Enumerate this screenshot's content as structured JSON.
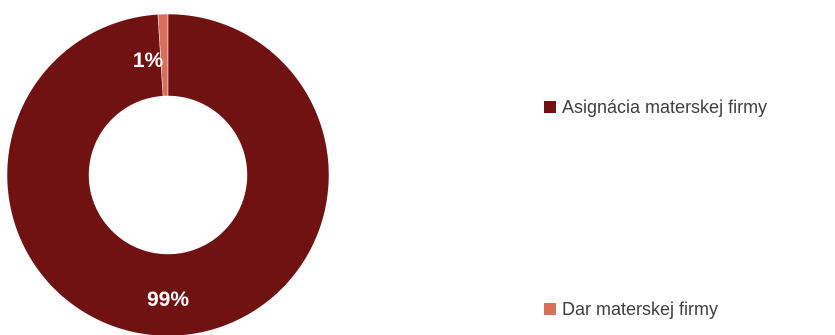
{
  "chart_data": {
    "type": "pie",
    "variant": "donut",
    "categories": [
      "Asignácia materskej firmy",
      "Dar materskej firmy"
    ],
    "values": [
      99,
      1
    ],
    "data_labels": [
      "99%",
      "1%"
    ],
    "colors": [
      "#701112",
      "#d86f5b"
    ],
    "title": "",
    "legend_position": "right",
    "legend": [
      {
        "label": "Asignácia materskej firmy",
        "color": "#701112"
      },
      {
        "label": "Dar materskej firmy",
        "color": "#d86f5b"
      }
    ]
  }
}
